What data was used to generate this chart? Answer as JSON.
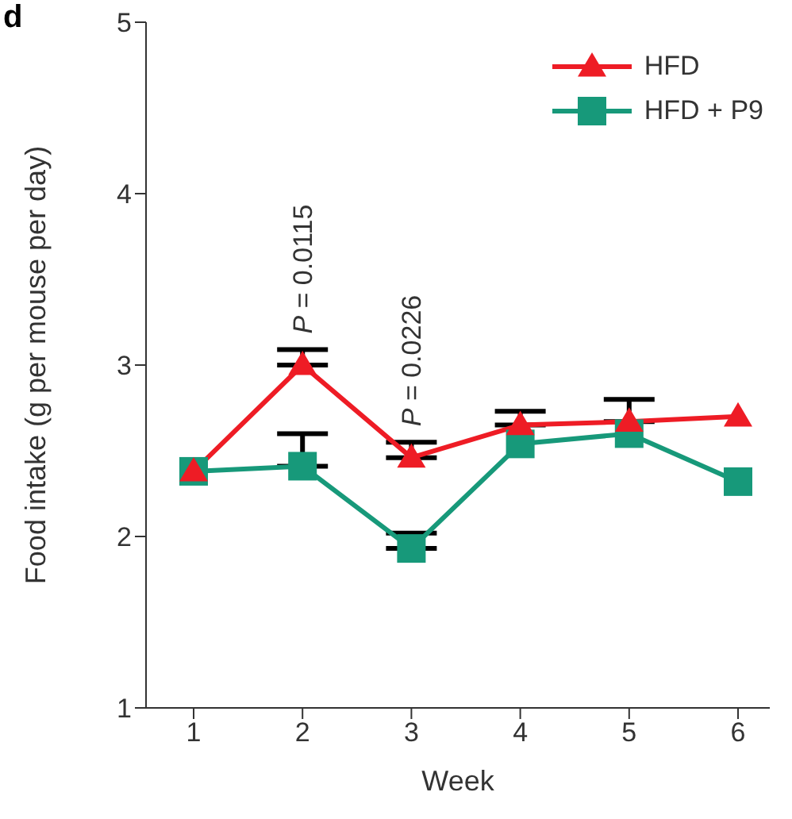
{
  "chart_data": {
    "type": "line",
    "title": "d",
    "xlabel": "Week",
    "ylabel": "Food intake (g per mouse per day)",
    "categories": [
      "1",
      "2",
      "3",
      "4",
      "5",
      "6"
    ],
    "ylim": [
      1,
      5
    ],
    "yticks": [
      1,
      2,
      3,
      4,
      5
    ],
    "legend": "top right",
    "series": [
      {
        "name": "HFD",
        "color": "#ee1c25",
        "marker": "triangle",
        "values": [
          2.38,
          3.0,
          2.46,
          2.65,
          2.67,
          2.7
        ],
        "errors": [
          null,
          [
            3.0,
            3.09
          ],
          [
            2.46,
            2.55
          ],
          [
            2.65,
            2.73
          ],
          [
            2.67,
            2.8
          ],
          null
        ]
      },
      {
        "name": "HFD + P9",
        "color": "#17997a",
        "marker": "square",
        "values": [
          2.38,
          2.41,
          1.93,
          2.54,
          2.6,
          2.32
        ],
        "errors": [
          null,
          [
            2.41,
            2.6
          ],
          [
            1.93,
            2.02
          ],
          null,
          null,
          null
        ]
      }
    ],
    "annotations": [
      {
        "text": "P = 0.0115",
        "x": "2",
        "y": 3.09
      },
      {
        "text": "P = 0.0226",
        "x": "3",
        "y": 2.55
      }
    ]
  }
}
